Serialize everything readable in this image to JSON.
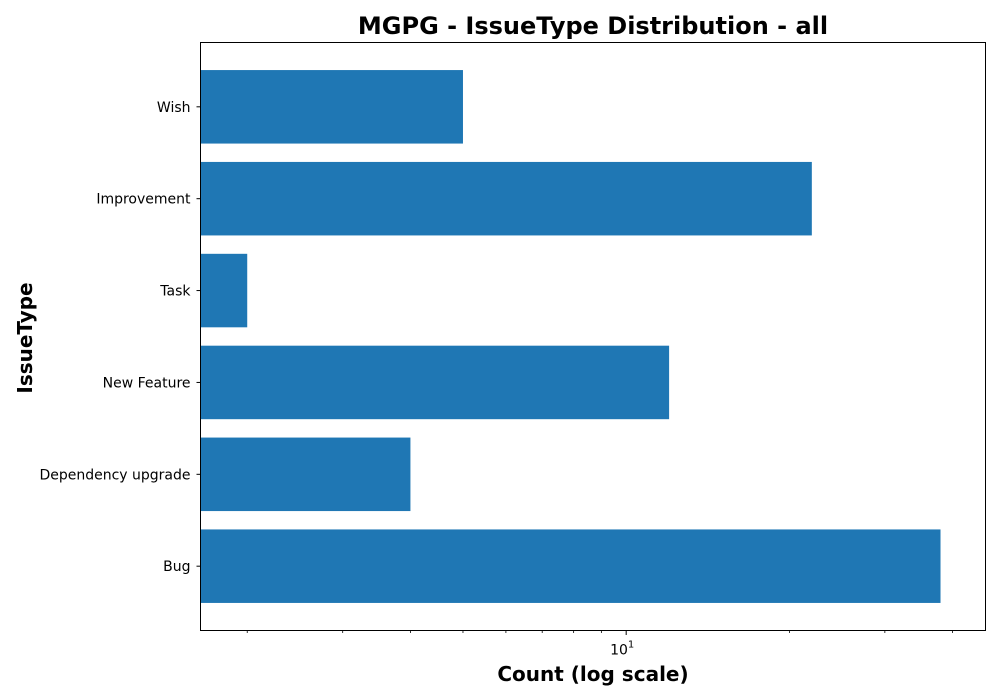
{
  "chart_data": {
    "type": "bar",
    "orientation": "horizontal",
    "title": "MGPG - IssueType Distribution - all",
    "xlabel": "Count (log scale)",
    "ylabel": "IssueType",
    "x_scale": "log",
    "xlim": [
      1.64,
      46
    ],
    "categories": [
      "Bug",
      "Dependency upgrade",
      "New Feature",
      "Task",
      "Improvement",
      "Wish"
    ],
    "values": [
      38,
      4,
      12,
      2,
      22,
      5
    ],
    "x_major_ticks": [
      10
    ],
    "x_major_tick_labels": [
      {
        "base": "10",
        "exp": "1"
      }
    ],
    "x_minor_ticks": [
      2,
      3,
      4,
      5,
      6,
      7,
      8,
      9,
      20,
      30,
      40
    ],
    "grid": false,
    "bar_color": "#1f77b4"
  }
}
